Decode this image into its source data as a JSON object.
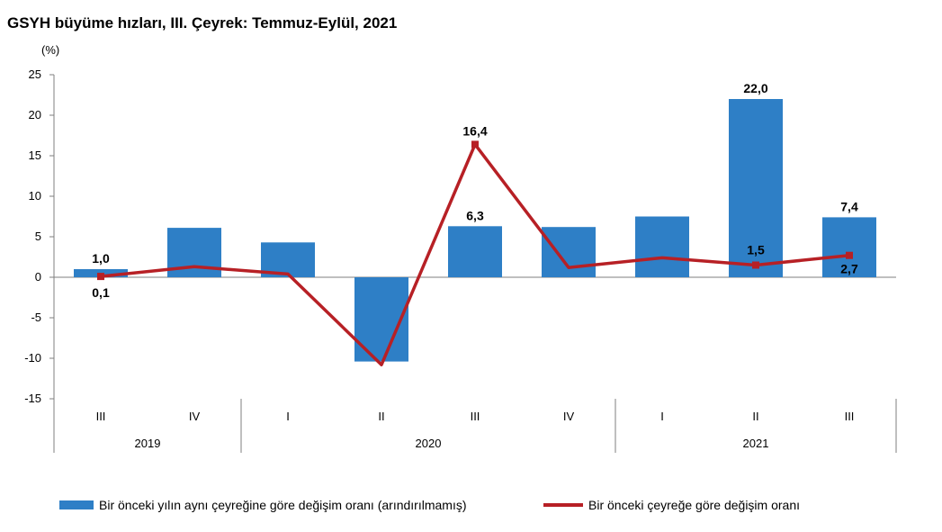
{
  "chart_data": {
    "type": "bar",
    "title": "GSYH büyüme hızları, III. Çeyrek: Temmuz-Eylül, 2021",
    "ylabel": "(%)",
    "xlabel": "",
    "ylim": [
      -15,
      25
    ],
    "yticks": [
      25,
      20,
      15,
      10,
      5,
      0,
      -5,
      -10,
      -15
    ],
    "categories": [
      "III",
      "IV",
      "I",
      "II",
      "III",
      "IV",
      "I",
      "II",
      "III"
    ],
    "year_groups": [
      {
        "label": "2019",
        "start": 0,
        "end": 1
      },
      {
        "label": "2020",
        "start": 2,
        "end": 5
      },
      {
        "label": "2021",
        "start": 6,
        "end": 8
      }
    ],
    "series": [
      {
        "name": "Bir önceki yılın aynı çeyreğine göre değişim oranı (arındırılmamış)",
        "type": "bar",
        "color": "#2e7fc6",
        "values": [
          1.0,
          6.1,
          4.3,
          -10.4,
          6.3,
          6.2,
          7.5,
          22.0,
          7.4
        ],
        "labels": [
          "1,0",
          "",
          "",
          "",
          "6,3",
          "",
          "",
          "22,0",
          "7,4"
        ]
      },
      {
        "name": "Bir önceki çeyreğe göre değişim oranı",
        "type": "line",
        "color": "#b72025",
        "values": [
          0.1,
          1.3,
          0.4,
          -10.8,
          16.4,
          1.2,
          2.4,
          1.5,
          2.7
        ],
        "labels": [
          "0,1",
          "",
          "",
          "",
          "16,4",
          "",
          "",
          "1,5",
          "2,7"
        ]
      }
    ],
    "legend_position": "bottom",
    "grid": false
  }
}
